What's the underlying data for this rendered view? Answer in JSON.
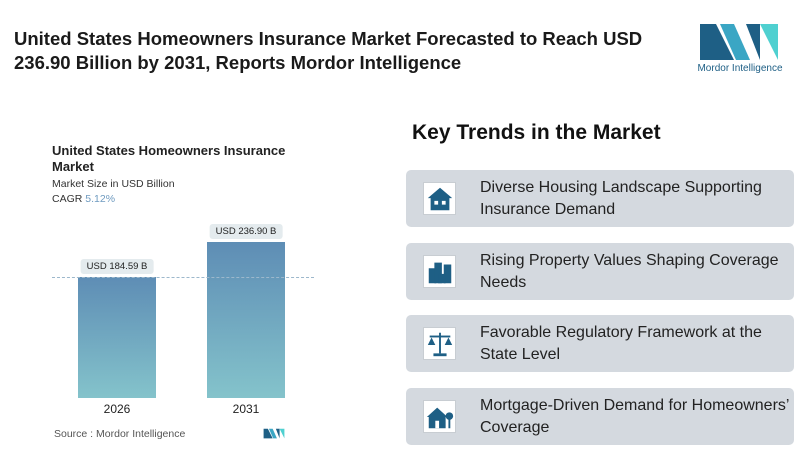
{
  "header": {
    "title": "United States Homeowners Insurance Market Forecasted to Reach USD 236.90 Billion by 2031, Reports Mordor Intelligence",
    "logo_text": "Mordor Intelligence"
  },
  "chart_data": {
    "type": "bar",
    "title": "United States Homeowners Insurance Market",
    "subtitle": "Market Size in USD Billion",
    "cagr_label": "CAGR",
    "cagr_value": "5.12%",
    "categories": [
      "2026",
      "2031"
    ],
    "values": [
      184.59,
      236.9
    ],
    "data_labels": [
      "USD 184.59 B",
      "USD 236.90 B"
    ],
    "colors": {
      "top": "#5e8db5",
      "bottom": "#84c3cb"
    },
    "source": "Source :  Mordor Intelligence"
  },
  "trends": {
    "title": "Key Trends in the Market",
    "items": [
      {
        "icon": "house-icon",
        "text": "Diverse Housing Landscape Supporting Insurance Demand"
      },
      {
        "icon": "buildings-icon",
        "text": "Rising Property Values Shaping Coverage Needs"
      },
      {
        "icon": "scales-icon",
        "text": "Favorable Regulatory Framework at the State Level"
      },
      {
        "icon": "house-tree-icon",
        "text": "Mortgage-Driven Demand for Homeowners’ Coverage"
      }
    ],
    "icon_color": "#1e5f85",
    "card_color": "#d4d9df"
  }
}
